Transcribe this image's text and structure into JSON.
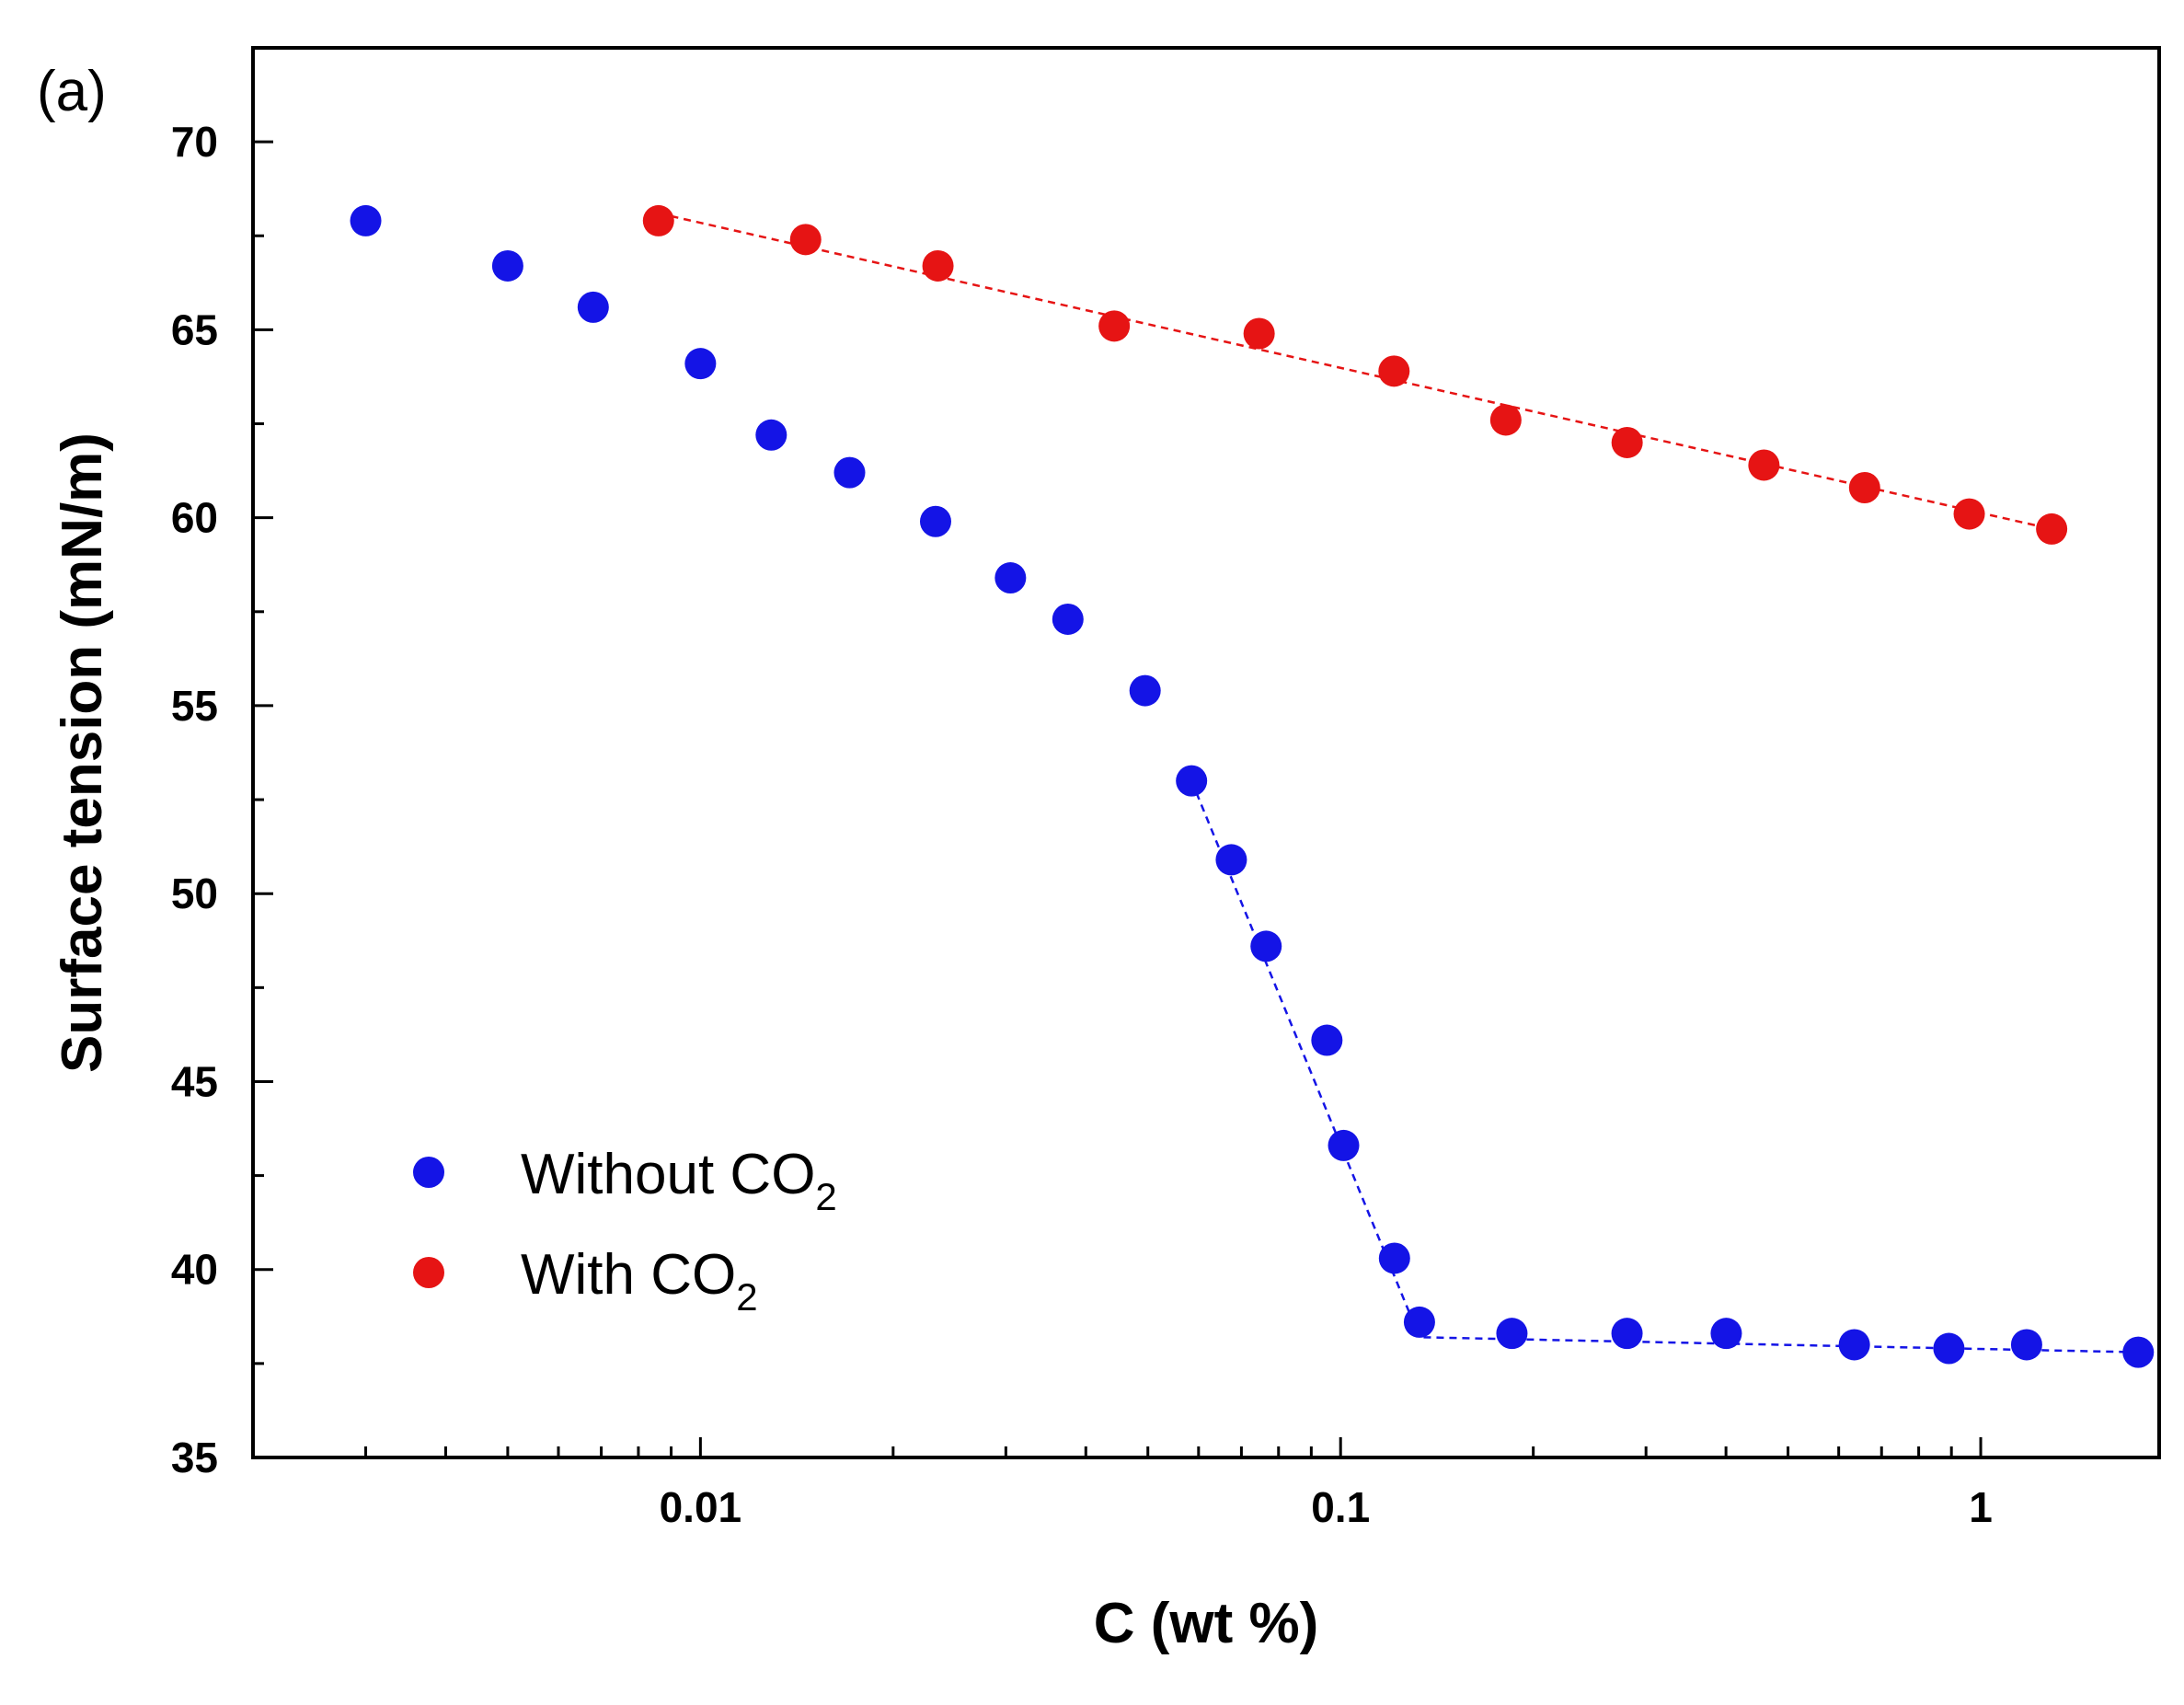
{
  "panel_label": "(a)",
  "chart_data": {
    "type": "scatter",
    "xlabel": "C (wt %)",
    "ylabel": "Surface tension (mN/m)",
    "xscale": "log",
    "xlim": [
      0.002,
      1.9
    ],
    "ylim": [
      35,
      72.5
    ],
    "xticks": [
      {
        "value": 0.01,
        "label": "0.01"
      },
      {
        "value": 0.1,
        "label": "0.1"
      },
      {
        "value": 1,
        "label": "1"
      }
    ],
    "yticks": [
      {
        "value": 35,
        "label": "35"
      },
      {
        "value": 40,
        "label": "40"
      },
      {
        "value": 45,
        "label": "45"
      },
      {
        "value": 50,
        "label": "50"
      },
      {
        "value": 55,
        "label": "55"
      },
      {
        "value": 60,
        "label": "60"
      },
      {
        "value": 65,
        "label": "65"
      },
      {
        "value": 70,
        "label": "70"
      }
    ],
    "grid": false,
    "legend_position": "lower-left",
    "series": [
      {
        "name": "Without CO",
        "name_subscript": "2",
        "color": "#1414e6",
        "x": [
          0.003,
          0.005,
          0.0068,
          0.01,
          0.0129,
          0.0171,
          0.0233,
          0.0305,
          0.0375,
          0.0495,
          0.0585,
          0.0675,
          0.0765,
          0.0952,
          0.1011,
          0.1214,
          0.1328,
          0.1852,
          0.2802,
          0.4004,
          0.6347,
          0.8918,
          1.1795,
          1.7624
        ],
        "y": [
          67.9,
          66.7,
          65.6,
          64.1,
          62.2,
          61.2,
          59.9,
          58.4,
          57.3,
          55.4,
          53.0,
          50.9,
          48.6,
          46.1,
          43.3,
          40.3,
          38.6,
          38.3,
          38.3,
          38.3,
          38.0,
          37.9,
          38.0,
          37.8
        ],
        "fit_line": {
          "x": [
            0.0585,
            0.1328,
            1.7624
          ],
          "y": [
            53.0,
            38.2,
            37.8
          ]
        }
      },
      {
        "name": "With CO",
        "name_subscript": "2",
        "color": "#e61414",
        "x": [
          0.0086,
          0.0146,
          0.0235,
          0.0443,
          0.0746,
          0.1212,
          0.1812,
          0.2803,
          0.4585,
          0.6586,
          0.9595,
          1.2906
        ],
        "y": [
          67.9,
          67.4,
          66.7,
          65.1,
          64.9,
          63.9,
          62.6,
          62.0,
          61.4,
          60.8,
          60.1,
          59.7
        ],
        "fit_line": {
          "x": [
            0.0086,
            1.2906
          ],
          "y": [
            68.1,
            59.7
          ]
        }
      }
    ]
  }
}
